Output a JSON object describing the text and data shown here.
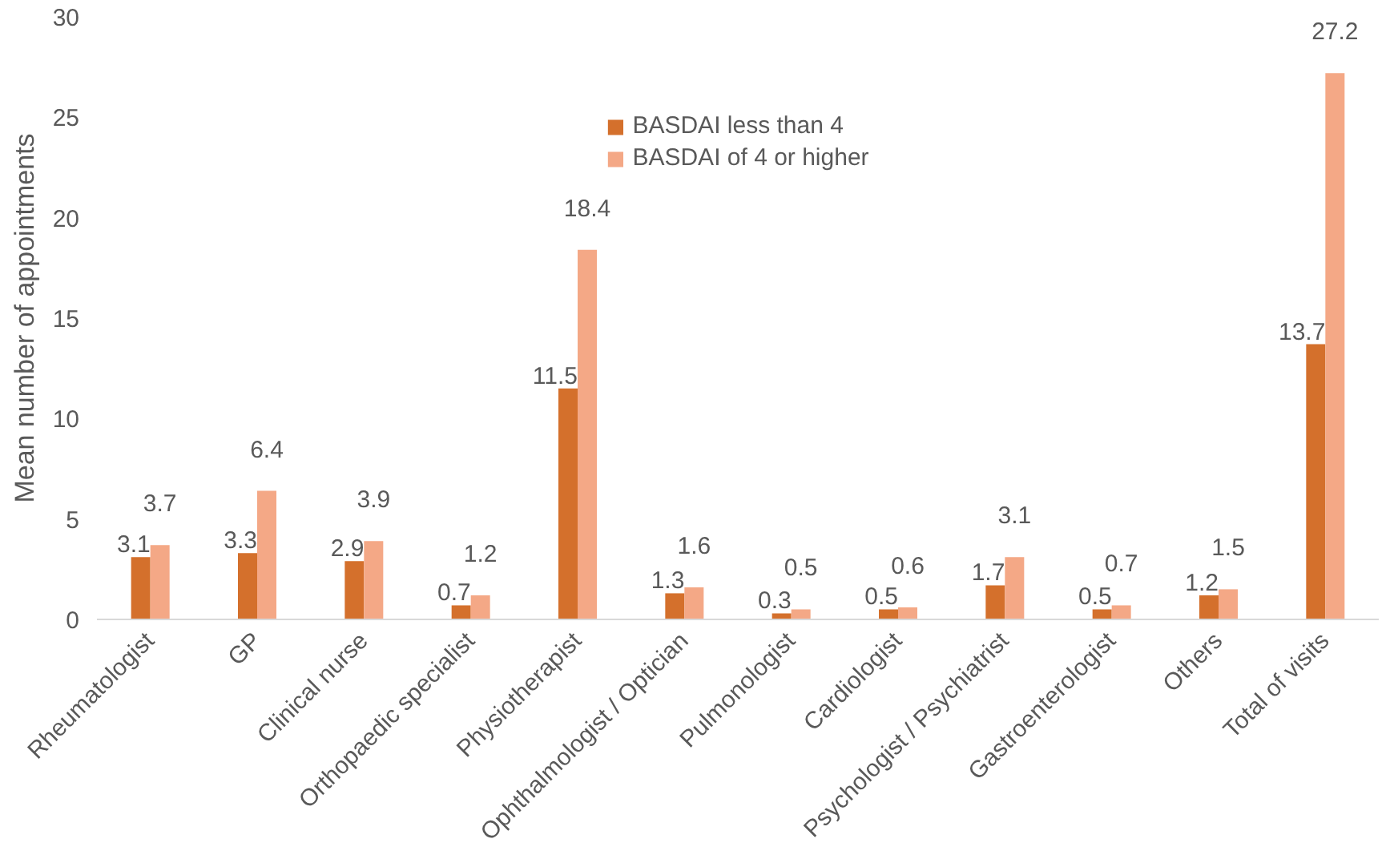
{
  "chart_data": {
    "type": "bar",
    "ylabel": "Mean number of appointments",
    "categories": [
      "Rheumatologist",
      "GP",
      "Clinical nurse",
      "Orthopaedic specialist",
      "Physiotherapist",
      "Ophthalmologist / Optician",
      "Pulmonologist",
      "Cardiologist",
      "Psychologist / Psychiatrist",
      "Gastroenterologist",
      "Others",
      "Total of visits"
    ],
    "series": [
      {
        "name": "BASDAI less than 4",
        "color": "#d4702c",
        "values": [
          3.1,
          3.3,
          2.9,
          0.7,
          11.5,
          1.3,
          0.3,
          0.5,
          1.7,
          0.5,
          1.2,
          13.7
        ]
      },
      {
        "name": "BASDAI of 4 or higher",
        "color": "#f4a886",
        "values": [
          3.7,
          6.4,
          3.9,
          1.2,
          18.4,
          1.6,
          0.5,
          0.6,
          3.1,
          0.7,
          1.5,
          27.2
        ]
      }
    ],
    "ylim": [
      0,
      30
    ],
    "yticks": [
      0,
      5,
      10,
      15,
      20,
      25,
      30
    ],
    "grid": false,
    "legend": "top",
    "data_labels": true
  }
}
